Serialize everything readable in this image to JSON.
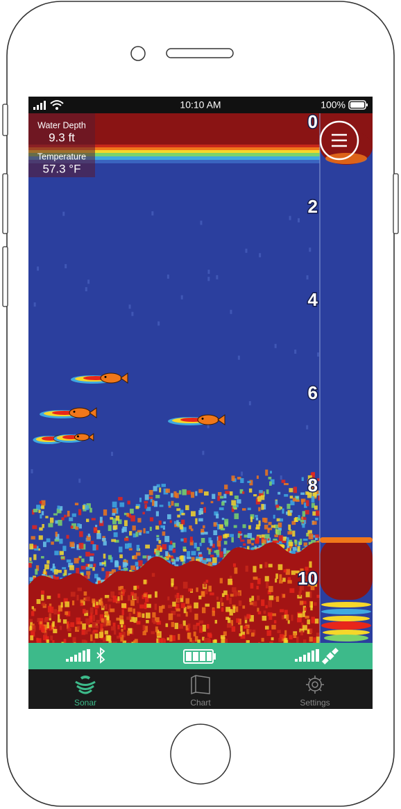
{
  "status_bar": {
    "time": "10:10 AM",
    "battery": "100%"
  },
  "readout": {
    "depth_label": "Water Depth",
    "depth_value": "9.3 ft",
    "temperature_label": "Temperature",
    "temperature_value": "57.3 °F"
  },
  "depth_scale": [
    "0",
    "2",
    "4",
    "6",
    "8",
    "10"
  ],
  "tabs": [
    "Sonar",
    "Chart",
    "Settings"
  ]
}
